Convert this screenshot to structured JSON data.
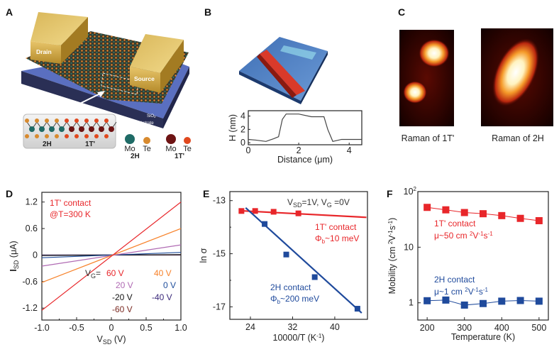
{
  "panel_labels": {
    "A": "A",
    "B": "B",
    "C": "C",
    "D": "D",
    "E": "E",
    "F": "F"
  },
  "device": {
    "drain": "Drain",
    "source": "Source",
    "sio2_main": "SiO",
    "sio2_sub": "2",
    "substrate": "Si substrate",
    "inset_2h": "2H",
    "inset_1t": "1T'",
    "legend": [
      {
        "element": "Mo",
        "phase": "2H",
        "color": "#1f6b66"
      },
      {
        "element": "Te",
        "phase": "2H",
        "color": "#d88a2e"
      },
      {
        "element": "Mo",
        "phase": "1T'",
        "color": "#6e1414"
      },
      {
        "element": "Te",
        "phase": "1T'",
        "color": "#e0481e"
      }
    ],
    "legend_phase_2h": "2H",
    "legend_phase_1t": "1T'"
  },
  "raman": {
    "caption_1t": "Raman of 1T'",
    "caption_2h": "Raman of 2H"
  },
  "chart_data": [
    {
      "panel": "B",
      "type": "line",
      "xlabel": "Distance (μm)",
      "ylabel": "H (nm)",
      "xlim": [
        0,
        4.5
      ],
      "ylim": [
        -0.3,
        4.8
      ],
      "xticks": [
        "0",
        "2",
        "4"
      ],
      "yticks": [
        "0",
        "2",
        "4"
      ],
      "x": [
        0,
        0.3,
        0.7,
        1.0,
        1.2,
        1.35,
        1.5,
        2.0,
        2.5,
        3.0,
        3.15,
        3.35,
        3.7,
        4.5
      ],
      "y": [
        0.5,
        0.4,
        0.2,
        0.6,
        0.9,
        3.5,
        4.3,
        4.3,
        3.9,
        3.9,
        2.0,
        0.2,
        0.5,
        0.5
      ],
      "color": "#444444"
    },
    {
      "panel": "D",
      "type": "line",
      "xlabel": {
        "main": "V",
        "sub": "SD",
        "rest": " (V)"
      },
      "ylabel": {
        "main": "I",
        "sub": "SD",
        "rest": " (μA)"
      },
      "xlim": [
        -1.0,
        1.0
      ],
      "ylim": [
        -1.47,
        1.42
      ],
      "xticks": [
        "-1.0",
        "-0.5",
        "0",
        "0.5",
        "1.0"
      ],
      "yticks": [
        "-1.2",
        "-0.6",
        "0",
        "0.6",
        "1.2"
      ],
      "annotation_line1": "1T' contact",
      "annotation_line2": "@T=300 K",
      "legend_title": {
        "main": "V",
        "sub": "G",
        "rest": "="
      },
      "x": [
        -1.0,
        1.0
      ],
      "series": [
        {
          "name": "60 V",
          "values": [
            -1.25,
            1.2
          ],
          "color": "#e8262a"
        },
        {
          "name": "40 V",
          "values": [
            -0.62,
            0.6
          ],
          "color": "#f7822a"
        },
        {
          "name": "20 V",
          "values": [
            -0.25,
            0.23
          ],
          "color": "#b06ab3"
        },
        {
          "name": "0 V",
          "values": [
            -0.06,
            0.06
          ],
          "color": "#1f4e9c"
        },
        {
          "name": "-20 V",
          "values": [
            -0.01,
            0.01
          ],
          "color": "#111111"
        },
        {
          "name": "-40 V",
          "values": [
            0.0,
            0.005
          ],
          "color": "#3b2a7a"
        },
        {
          "name": "-60 V",
          "values": [
            0.0,
            0.0
          ],
          "color": "#7a2a22"
        }
      ]
    },
    {
      "panel": "E",
      "type": "scatter",
      "xlabel": {
        "main": "10000/T (K",
        "sup": "-1",
        "rest": ")"
      },
      "ylabel": "ln σ",
      "xlim": [
        20.1,
        46.2
      ],
      "ylim": [
        -17.47,
        -12.66
      ],
      "xticks": [
        "24",
        "32",
        "40"
      ],
      "yticks": [
        "-13",
        "-15",
        "-17"
      ],
      "condition": {
        "a": "V",
        "a_sub": "SD",
        "b": "=1V, V",
        "b_sub": "G",
        "c": " =0V"
      },
      "series": [
        {
          "name": "1T' contact",
          "barrier": "Φ",
          "barrier_sub": "b",
          "barrier_rest": "~10 meV",
          "color": "#e8262a",
          "x": [
            22.3,
            24.9,
            28.4,
            33.1
          ],
          "y": [
            -13.39,
            -13.39,
            -13.42,
            -13.48
          ],
          "fit": {
            "x": [
              22.0,
              46.0
            ],
            "y": [
              -13.38,
              -13.63
            ]
          }
        },
        {
          "name": "2H contact",
          "barrier": "Φ",
          "barrier_sub": "b",
          "barrier_rest": "~200 meV",
          "color": "#1f4a9c",
          "x": [
            26.7,
            30.8,
            36.2,
            44.3
          ],
          "y": [
            -13.88,
            -15.03,
            -15.88,
            -17.07
          ],
          "fit": {
            "x": [
              23.1,
              45.1
            ],
            "y": [
              -13.27,
              -17.23
            ]
          }
        }
      ]
    },
    {
      "panel": "F",
      "type": "line",
      "xlabel": "Temperature (K)",
      "ylabel": {
        "main": "Mobility (cm ",
        "sup1": "2",
        "mid": "V",
        "sup2": "-1",
        "s": "s",
        "sup3": "-1",
        "rest": ")"
      },
      "xlim": [
        175,
        525
      ],
      "ylim": [
        0.49,
        100
      ],
      "yscale": "log",
      "xticks": [
        "200",
        "300",
        "400",
        "500"
      ],
      "yticks": [
        {
          "label": "1",
          "value": 1
        },
        {
          "label": "10",
          "value": 10
        },
        {
          "label": "10",
          "sup": "2",
          "value": 100
        }
      ],
      "x": [
        200,
        250,
        300,
        350,
        400,
        450,
        500
      ],
      "series": [
        {
          "name": "1T' contact",
          "mobility": {
            "main": "μ~50 cm ",
            "sup1": "2",
            "mid": "V",
            "sup2": "-1",
            "s": "s",
            "sup3": "-1"
          },
          "values": [
            52,
            47,
            42,
            40,
            37,
            33,
            30
          ],
          "color": "#e8262a"
        },
        {
          "name": "2H contact",
          "mobility": {
            "main": "μ~1 cm ",
            "sup1": "2",
            "mid": "V",
            "sup2": "-1",
            "s": "s",
            "sup3": "-1"
          },
          "values": [
            1.09,
            1.12,
            0.91,
            0.97,
            1.07,
            1.1,
            1.07
          ],
          "color": "#1f4a9c"
        }
      ]
    }
  ]
}
